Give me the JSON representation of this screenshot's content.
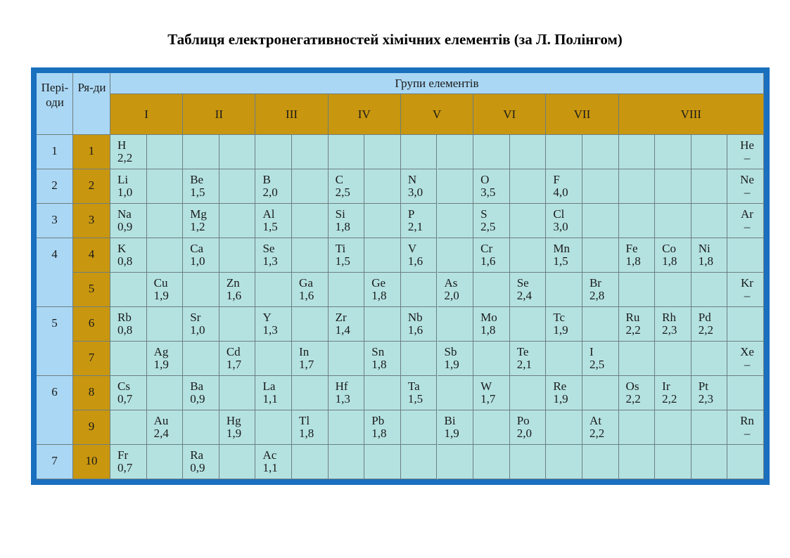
{
  "title": "Таблиця електронегативностей хімічних елементів (за Л. Полінгом)",
  "headers": {
    "periods": "Пері-оди",
    "rows": "Ря-ди",
    "groups": "Групи елементів"
  },
  "groups": [
    "I",
    "II",
    "III",
    "IV",
    "V",
    "VI",
    "VII",
    "VIII"
  ],
  "periods": [
    {
      "label": "1",
      "rows": [
        "1"
      ]
    },
    {
      "label": "2",
      "rows": [
        "2"
      ]
    },
    {
      "label": "3",
      "rows": [
        "3"
      ]
    },
    {
      "label": "4",
      "rows": [
        "4",
        "5"
      ]
    },
    {
      "label": "5",
      "rows": [
        "6",
        "7"
      ]
    },
    {
      "label": "6",
      "rows": [
        "8",
        "9"
      ]
    },
    {
      "label": "7",
      "rows": [
        "10"
      ]
    }
  ],
  "elements": [
    {
      "symbol": "H",
      "value": "2,2",
      "row": 0,
      "col": 0
    },
    {
      "symbol": "He",
      "value": "–",
      "row": 0,
      "col": 17
    },
    {
      "symbol": "Li",
      "value": "1,0",
      "row": 1,
      "col": 0
    },
    {
      "symbol": "Be",
      "value": "1,5",
      "row": 1,
      "col": 2
    },
    {
      "symbol": "B",
      "value": "2,0",
      "row": 1,
      "col": 4
    },
    {
      "symbol": "C",
      "value": "2,5",
      "row": 1,
      "col": 6
    },
    {
      "symbol": "N",
      "value": "3,0",
      "row": 1,
      "col": 8
    },
    {
      "symbol": "O",
      "value": "3,5",
      "row": 1,
      "col": 10
    },
    {
      "symbol": "F",
      "value": "4,0",
      "row": 1,
      "col": 12
    },
    {
      "symbol": "Ne",
      "value": "–",
      "row": 1,
      "col": 17
    },
    {
      "symbol": "Na",
      "value": "0,9",
      "row": 2,
      "col": 0
    },
    {
      "symbol": "Mg",
      "value": "1,2",
      "row": 2,
      "col": 2
    },
    {
      "symbol": "Al",
      "value": "1,5",
      "row": 2,
      "col": 4
    },
    {
      "symbol": "Si",
      "value": "1,8",
      "row": 2,
      "col": 6
    },
    {
      "symbol": "P",
      "value": "2,1",
      "row": 2,
      "col": 8
    },
    {
      "symbol": "S",
      "value": "2,5",
      "row": 2,
      "col": 10
    },
    {
      "symbol": "Cl",
      "value": "3,0",
      "row": 2,
      "col": 12
    },
    {
      "symbol": "Ar",
      "value": "–",
      "row": 2,
      "col": 17
    },
    {
      "symbol": "K",
      "value": "0,8",
      "row": 3,
      "col": 0
    },
    {
      "symbol": "Ca",
      "value": "1,0",
      "row": 3,
      "col": 2
    },
    {
      "symbol": "Se",
      "value": "1,3",
      "row": 3,
      "col": 4
    },
    {
      "symbol": "Ti",
      "value": "1,5",
      "row": 3,
      "col": 6
    },
    {
      "symbol": "V",
      "value": "1,6",
      "row": 3,
      "col": 8
    },
    {
      "symbol": "Cr",
      "value": "1,6",
      "row": 3,
      "col": 10
    },
    {
      "symbol": "Mn",
      "value": "1,5",
      "row": 3,
      "col": 12
    },
    {
      "symbol": "Fe",
      "value": "1,8",
      "row": 3,
      "col": 14
    },
    {
      "symbol": "Co",
      "value": "1,8",
      "row": 3,
      "col": 15
    },
    {
      "symbol": "Ni",
      "value": "1,8",
      "row": 3,
      "col": 16
    },
    {
      "symbol": "Cu",
      "value": "1,9",
      "row": 4,
      "col": 1
    },
    {
      "symbol": "Zn",
      "value": "1,6",
      "row": 4,
      "col": 3
    },
    {
      "symbol": "Ga",
      "value": "1,6",
      "row": 4,
      "col": 5
    },
    {
      "symbol": "Ge",
      "value": "1,8",
      "row": 4,
      "col": 7
    },
    {
      "symbol": "As",
      "value": "2,0",
      "row": 4,
      "col": 9
    },
    {
      "symbol": "Se",
      "value": "2,4",
      "row": 4,
      "col": 11
    },
    {
      "symbol": "Br",
      "value": "2,8",
      "row": 4,
      "col": 13
    },
    {
      "symbol": "Kr",
      "value": "–",
      "row": 4,
      "col": 17
    },
    {
      "symbol": "Rb",
      "value": "0,8",
      "row": 5,
      "col": 0
    },
    {
      "symbol": "Sr",
      "value": "1,0",
      "row": 5,
      "col": 2
    },
    {
      "symbol": "Y",
      "value": "1,3",
      "row": 5,
      "col": 4
    },
    {
      "symbol": "Zr",
      "value": "1,4",
      "row": 5,
      "col": 6
    },
    {
      "symbol": "Nb",
      "value": "1,6",
      "row": 5,
      "col": 8
    },
    {
      "symbol": "Mo",
      "value": "1,8",
      "row": 5,
      "col": 10
    },
    {
      "symbol": "Tc",
      "value": "1,9",
      "row": 5,
      "col": 12
    },
    {
      "symbol": "Ru",
      "value": "2,2",
      "row": 5,
      "col": 14
    },
    {
      "symbol": "Rh",
      "value": "2,3",
      "row": 5,
      "col": 15
    },
    {
      "symbol": "Pd",
      "value": "2,2",
      "row": 5,
      "col": 16
    },
    {
      "symbol": "Ag",
      "value": "1,9",
      "row": 6,
      "col": 1
    },
    {
      "symbol": "Cd",
      "value": "1,7",
      "row": 6,
      "col": 3
    },
    {
      "symbol": "In",
      "value": "1,7",
      "row": 6,
      "col": 5
    },
    {
      "symbol": "Sn",
      "value": "1,8",
      "row": 6,
      "col": 7
    },
    {
      "symbol": "Sb",
      "value": "1,9",
      "row": 6,
      "col": 9
    },
    {
      "symbol": "Te",
      "value": "2,1",
      "row": 6,
      "col": 11
    },
    {
      "symbol": "I",
      "value": "2,5",
      "row": 6,
      "col": 13
    },
    {
      "symbol": "Xe",
      "value": "–",
      "row": 6,
      "col": 17
    },
    {
      "symbol": "Cs",
      "value": "0,7",
      "row": 7,
      "col": 0
    },
    {
      "symbol": "Ba",
      "value": "0,9",
      "row": 7,
      "col": 2
    },
    {
      "symbol": "La",
      "value": "1,1",
      "row": 7,
      "col": 4
    },
    {
      "symbol": "Hf",
      "value": "1,3",
      "row": 7,
      "col": 6
    },
    {
      "symbol": "Ta",
      "value": "1,5",
      "row": 7,
      "col": 8
    },
    {
      "symbol": "W",
      "value": "1,7",
      "row": 7,
      "col": 10
    },
    {
      "symbol": "Re",
      "value": "1,9",
      "row": 7,
      "col": 12
    },
    {
      "symbol": "Os",
      "value": "2,2",
      "row": 7,
      "col": 14
    },
    {
      "symbol": "Ir",
      "value": "2,2",
      "row": 7,
      "col": 15
    },
    {
      "symbol": "Pt",
      "value": "2,3",
      "row": 7,
      "col": 16
    },
    {
      "symbol": "Au",
      "value": "2,4",
      "row": 8,
      "col": 1
    },
    {
      "symbol": "Hg",
      "value": "1,9",
      "row": 8,
      "col": 3
    },
    {
      "symbol": "Tl",
      "value": "1,8",
      "row": 8,
      "col": 5
    },
    {
      "symbol": "Pb",
      "value": "1,8",
      "row": 8,
      "col": 7
    },
    {
      "symbol": "Bi",
      "value": "1,9",
      "row": 8,
      "col": 9
    },
    {
      "symbol": "Po",
      "value": "2,0",
      "row": 8,
      "col": 11
    },
    {
      "symbol": "At",
      "value": "2,2",
      "row": 8,
      "col": 13
    },
    {
      "symbol": "Rn",
      "value": "–",
      "row": 8,
      "col": 17
    },
    {
      "symbol": "Fr",
      "value": "0,7",
      "row": 9,
      "col": 0
    },
    {
      "symbol": "Ra",
      "value": "0,9",
      "row": 9,
      "col": 2
    },
    {
      "symbol": "Ac",
      "value": "1,1",
      "row": 9,
      "col": 4
    }
  ]
}
